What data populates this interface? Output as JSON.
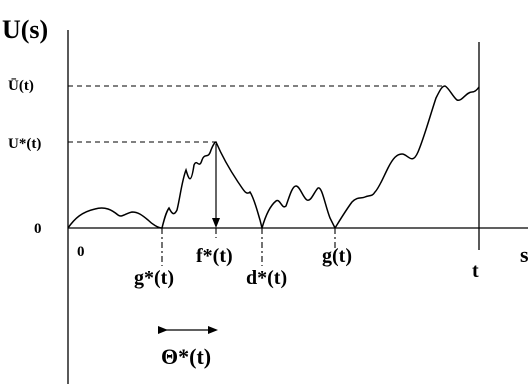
{
  "labels": {
    "y_axis": "U(s)",
    "x_axis": "s",
    "ubar_level": "Ū(t)",
    "ustar_level": "U*(t)",
    "zero_level": "0",
    "origin": "0",
    "t_mark": "t",
    "gstar": "g*(t)",
    "fstar": "f*(t)",
    "dstar": "d*(t)",
    "g": "g(t)",
    "theta": "Θ*(t)"
  },
  "colors": {
    "stroke": "#000000",
    "background": "#ffffff"
  },
  "arrow_icons": [
    "double-arrow-icon",
    "vertical-arrow-icon"
  ]
}
